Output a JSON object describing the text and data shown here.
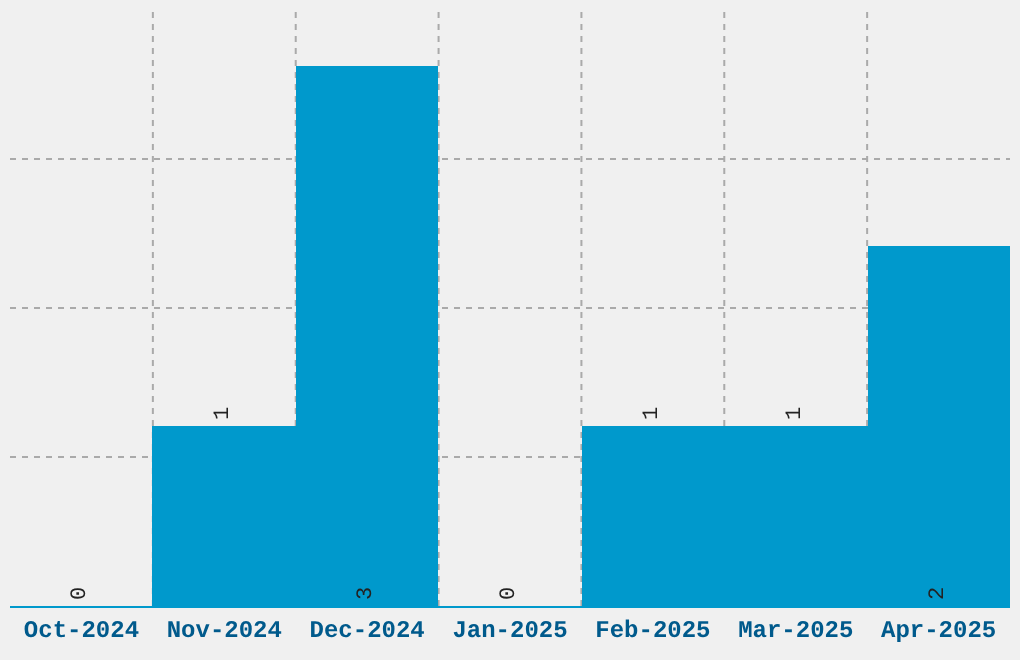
{
  "chart_data": {
    "type": "bar",
    "categories": [
      "Oct-2024",
      "Nov-2024",
      "Dec-2024",
      "Jan-2025",
      "Feb-2025",
      "Mar-2025",
      "Apr-2025"
    ],
    "values": [
      0,
      1,
      3,
      0,
      1,
      1,
      2
    ],
    "color": "#0099cc",
    "data_labels": true,
    "ylim": [
      0,
      3.31
    ],
    "yticks": [
      {
        "value": 0.83,
        "label": null
      },
      {
        "value": 1.655,
        "label": null
      },
      {
        "value": 2.48,
        "label": null
      }
    ],
    "tick_labels": "x",
    "grid": true
  }
}
